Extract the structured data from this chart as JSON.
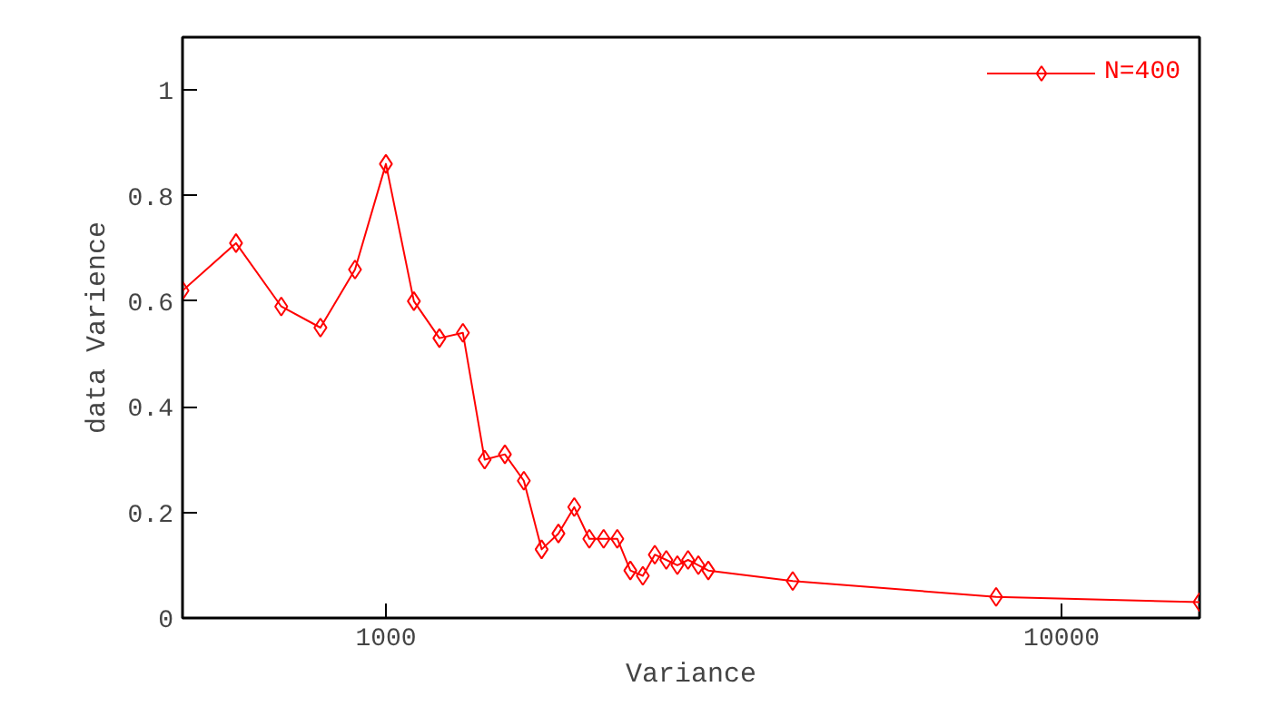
{
  "chart_data": {
    "type": "line",
    "xlabel": "Variance",
    "ylabel": "data Varience",
    "x": [
      500,
      600,
      700,
      800,
      900,
      1000,
      1100,
      1200,
      1300,
      1400,
      1500,
      1600,
      1700,
      1800,
      1900,
      2000,
      2100,
      2200,
      2300,
      2400,
      2500,
      2600,
      2700,
      2800,
      2900,
      3000,
      4000,
      8000,
      16000
    ],
    "series": [
      {
        "name": "N=400",
        "color": "#ff0000",
        "values": [
          0.62,
          0.71,
          0.59,
          0.55,
          0.66,
          0.86,
          0.6,
          0.53,
          0.54,
          0.3,
          0.31,
          0.26,
          0.13,
          0.16,
          0.21,
          0.15,
          0.15,
          0.15,
          0.09,
          0.08,
          0.12,
          0.11,
          0.1,
          0.11,
          0.1,
          0.09,
          0.07,
          0.04,
          0.03
        ]
      }
    ],
    "xlim": [
      500,
      16000
    ],
    "ylim": [
      0,
      1.1
    ],
    "xticks": [
      1000,
      10000
    ],
    "yticks": [
      0,
      0.2,
      0.4,
      0.6,
      0.8,
      1
    ],
    "log": "x",
    "grid": false,
    "legend": "top right",
    "marker": "diamond",
    "line_style": "solid"
  }
}
